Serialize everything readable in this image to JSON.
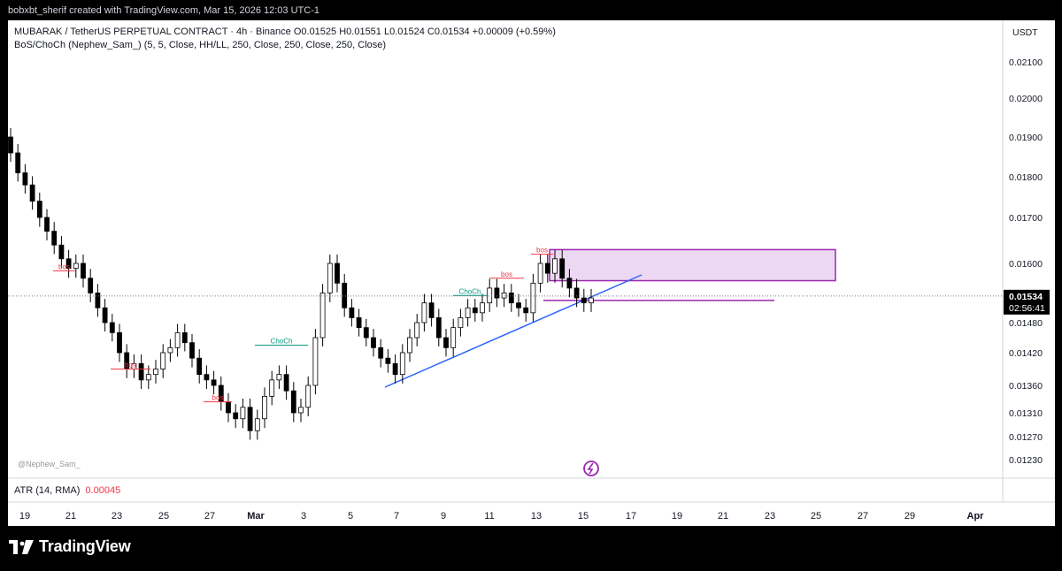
{
  "header": {
    "attribution": "bobxbt_sherif created with TradingView.com, Mar 15, 2026 12:03 UTC-1"
  },
  "legend": {
    "symbol_line": "MUBARAK / TetherUS PERPETUAL CONTRACT · 4h · Binance  O0.01525  H0.01551  L0.01524  C0.01534  +0.00009 (+0.59%)",
    "indicator_line": "BoS/ChoCh (Nephew_Sam_) (5, 5, Close, HH/LL, 250, Close, 250, Close, 250, Close)"
  },
  "currency": "USDT",
  "atr": {
    "label": "ATR (14, RMA)",
    "value": "0.00045"
  },
  "watermark": "@Nephew_Sam_",
  "brand": "TradingView",
  "price_label": {
    "value": "0.01534",
    "countdown": "02:56:41"
  },
  "colors": {
    "up": "#ffffff",
    "down": "#000000",
    "bos": "#f23645",
    "choch": "#089981",
    "trend": "#2962ff",
    "zone": "#9c27b0"
  },
  "chart_data": {
    "type": "candlestick",
    "symbol": "MUBARAK / TetherUS PERPETUAL CONTRACT",
    "interval": "4h",
    "exchange": "Binance",
    "last": {
      "open": 0.01525,
      "high": 0.01551,
      "low": 0.01524,
      "close": 0.01534,
      "change": 9e-05,
      "change_pct": 0.59
    },
    "y_ticks": [
      "0.02100",
      "0.02000",
      "0.01900",
      "0.01800",
      "0.01700",
      "0.01600",
      "0.01480",
      "0.01420",
      "0.01360",
      "0.01310",
      "0.01270",
      "0.01230"
    ],
    "x_ticks": [
      "19",
      "21",
      "23",
      "25",
      "27",
      "Mar",
      "3",
      "5",
      "7",
      "9",
      "11",
      "13",
      "15",
      "17",
      "19",
      "21",
      "23",
      "25",
      "27",
      "29",
      "Apr"
    ],
    "approx_closes": [
      0.0186,
      0.0181,
      0.0178,
      0.0174,
      0.017,
      0.0167,
      0.0164,
      0.0161,
      0.0159,
      0.016,
      0.0157,
      0.0154,
      0.0151,
      0.0148,
      0.0146,
      0.0142,
      0.0139,
      0.014,
      0.0137,
      0.0138,
      0.0139,
      0.0142,
      0.0143,
      0.0146,
      0.0144,
      0.0141,
      0.0138,
      0.0137,
      0.0136,
      0.0133,
      0.0131,
      0.013,
      0.0132,
      0.0128,
      0.013,
      0.0134,
      0.0137,
      0.0138,
      0.0135,
      0.0131,
      0.0132,
      0.0136,
      0.0145,
      0.0154,
      0.016,
      0.0156,
      0.0151,
      0.0149,
      0.0147,
      0.0145,
      0.0143,
      0.0141,
      0.014,
      0.0138,
      0.0142,
      0.0145,
      0.0148,
      0.0152,
      0.0149,
      0.0145,
      0.0143,
      0.0147,
      0.0149,
      0.0151,
      0.015,
      0.0152,
      0.0155,
      0.0153,
      0.0154,
      0.0152,
      0.0151,
      0.015,
      0.0156,
      0.016,
      0.0158,
      0.0161,
      0.0157,
      0.0155,
      0.0153,
      0.0152,
      0.0153
    ],
    "annotations": [
      {
        "label": "bos",
        "price": 0.01585
      },
      {
        "label": "bos",
        "price": 0.0139
      },
      {
        "label": "bos",
        "price": 0.0133
      },
      {
        "label": "ChoCh",
        "price": 0.01435
      },
      {
        "label": "ChoCh",
        "price": 0.01535
      },
      {
        "label": "bos",
        "price": 0.0157
      },
      {
        "label": "bos",
        "price": 0.0162
      }
    ],
    "supply_zone": {
      "low": 0.01565,
      "high": 0.0163
    },
    "horizontal_level": 0.01525,
    "current_price": 0.01534,
    "grid": false
  }
}
